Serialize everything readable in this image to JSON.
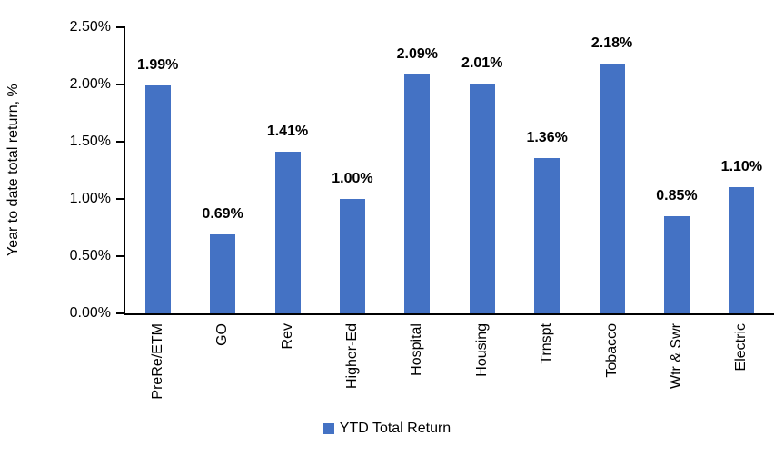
{
  "chart_data": {
    "type": "bar",
    "title": "",
    "ylabel": "Year to date total return, %",
    "xlabel": "",
    "categories": [
      "PreRe/ETM",
      "GO",
      "Rev",
      "Higher-Ed",
      "Hospital",
      "Housing",
      "Trnspt",
      "Tobacco",
      "Wtr & Swr",
      "Electric"
    ],
    "series": [
      {
        "name": "YTD Total Return",
        "values": [
          1.99,
          0.69,
          1.41,
          1.0,
          2.09,
          2.01,
          1.36,
          2.18,
          0.85,
          1.1
        ]
      }
    ],
    "value_labels": [
      "1.99%",
      "0.69%",
      "1.41%",
      "1.00%",
      "2.09%",
      "2.01%",
      "1.36%",
      "2.18%",
      "0.85%",
      "1.10%"
    ],
    "yticks": [
      {
        "label": "0.00%",
        "value": 0.0
      },
      {
        "label": "0.50%",
        "value": 0.5
      },
      {
        "label": "1.00%",
        "value": 1.0
      },
      {
        "label": "1.50%",
        "value": 1.5
      },
      {
        "label": "2.00%",
        "value": 2.0
      },
      {
        "label": "2.50%",
        "value": 2.5
      }
    ],
    "ylim": [
      0,
      2.5
    ],
    "grid": false,
    "bar_color": "#4472C4",
    "axis_color": "#000000",
    "text_color": "#000000",
    "legend": {
      "position": "bottom",
      "entries": [
        {
          "label": "YTD Total Return",
          "color": "#4472C4"
        }
      ]
    }
  }
}
